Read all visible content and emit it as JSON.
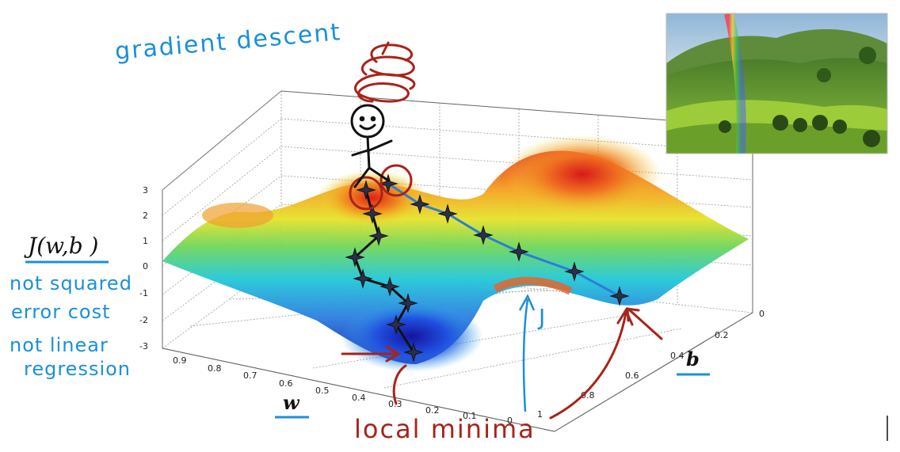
{
  "annotations": {
    "title": "gradient descent",
    "cost_label": "J(w,b )",
    "note_line1": "not squared",
    "note_line2": "error cost",
    "note_line3": "not linear",
    "note_line4": "regression",
    "j_label": "J",
    "local_minima": "local minima",
    "w_label": "w",
    "b_label": "b"
  },
  "axes": {
    "z_ticks": [
      "3",
      "2",
      "1",
      "0",
      "-1",
      "-2",
      "-3"
    ],
    "w_ticks": [
      "0.9",
      "0.8",
      "0.7",
      "0.6",
      "0.5",
      "0.4",
      "0.3",
      "0.2",
      "0.1",
      "0"
    ],
    "b_ticks": [
      "0",
      "0.2",
      "0.4",
      "0.6",
      "0.8",
      "1"
    ]
  },
  "colors": {
    "annotation_blue": "#1a90d8",
    "annotation_red": "#a8231a",
    "path_blue": "#2a7fd4",
    "path_black": "#111111"
  },
  "photo": {
    "description_icon": "landscape-rainbow-photo"
  }
}
